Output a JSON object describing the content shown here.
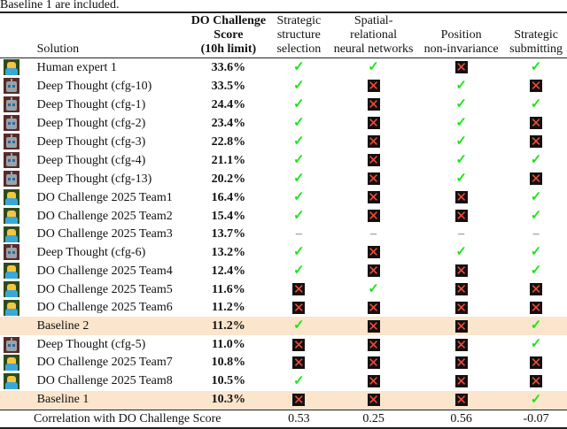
{
  "caption_fragment": "Baseline 1 are included.",
  "header": {
    "solution": "Solution",
    "score": [
      "DO Challenge",
      "Score",
      "(10h limit)"
    ],
    "col1": [
      "Strategic",
      "structure",
      "selection"
    ],
    "col2": [
      "Spatial-",
      "relational",
      "neural networks"
    ],
    "col3": [
      "Position",
      "non-invariance"
    ],
    "col4": [
      "Strategic",
      "submitting"
    ]
  },
  "marks": {
    "yes": "✓",
    "no": "✕",
    "na": "–"
  },
  "colors": {
    "check": "#19e619",
    "cross": "#ff4b3a",
    "highlight": "#fbe5cc"
  },
  "rows": [
    {
      "icon": "person-icon",
      "name": "Human expert 1",
      "score": "33.6%",
      "f": [
        "yes",
        "yes",
        "no",
        "yes"
      ]
    },
    {
      "icon": "robot-icon",
      "name": "Deep Thought (cfg-10)",
      "score": "33.5%",
      "f": [
        "yes",
        "no",
        "yes",
        "no"
      ]
    },
    {
      "icon": "robot-icon",
      "name": "Deep Thought (cfg-1)",
      "score": "24.4%",
      "f": [
        "yes",
        "no",
        "yes",
        "yes"
      ]
    },
    {
      "icon": "robot-icon",
      "name": "Deep Thought (cfg-2)",
      "score": "23.4%",
      "f": [
        "yes",
        "no",
        "yes",
        "no"
      ]
    },
    {
      "icon": "robot-icon",
      "name": "Deep Thought (cfg-3)",
      "score": "22.8%",
      "f": [
        "yes",
        "no",
        "yes",
        "no"
      ]
    },
    {
      "icon": "robot-icon",
      "name": "Deep Thought (cfg-4)",
      "score": "21.1%",
      "f": [
        "yes",
        "no",
        "yes",
        "yes"
      ]
    },
    {
      "icon": "robot-icon",
      "name": "Deep Thought (cfg-13)",
      "score": "20.2%",
      "f": [
        "yes",
        "no",
        "yes",
        "no"
      ]
    },
    {
      "icon": "person-icon",
      "name": "DO Challenge 2025 Team1",
      "score": "16.4%",
      "f": [
        "yes",
        "no",
        "no",
        "yes"
      ]
    },
    {
      "icon": "person-icon",
      "name": "DO Challenge 2025 Team2",
      "score": "15.4%",
      "f": [
        "yes",
        "no",
        "no",
        "yes"
      ]
    },
    {
      "icon": "person-icon",
      "name": "DO Challenge 2025 Team3",
      "score": "13.7%",
      "f": [
        "na",
        "na",
        "na",
        "na"
      ]
    },
    {
      "icon": "robot-icon",
      "name": "Deep Thought (cfg-6)",
      "score": "13.2%",
      "f": [
        "yes",
        "no",
        "yes",
        "yes"
      ]
    },
    {
      "icon": "person-icon",
      "name": "DO Challenge 2025 Team4",
      "score": "12.4%",
      "f": [
        "yes",
        "no",
        "no",
        "yes"
      ]
    },
    {
      "icon": "person-icon",
      "name": "DO Challenge 2025 Team5",
      "score": "11.6%",
      "f": [
        "no",
        "yes",
        "no",
        "no"
      ]
    },
    {
      "icon": "person-icon",
      "name": "DO Challenge 2025 Team6",
      "score": "11.2%",
      "f": [
        "no",
        "no",
        "no",
        "no"
      ]
    },
    {
      "icon": "",
      "name": "Baseline 2",
      "score": "11.2%",
      "f": [
        "yes",
        "no",
        "no",
        "yes"
      ],
      "highlight": true
    },
    {
      "icon": "robot-icon",
      "name": "Deep Thought (cfg-5)",
      "score": "11.0%",
      "f": [
        "no",
        "no",
        "no",
        "yes"
      ]
    },
    {
      "icon": "person-icon",
      "name": "DO Challenge 2025 Team7",
      "score": "10.8%",
      "f": [
        "no",
        "no",
        "no",
        "no"
      ]
    },
    {
      "icon": "person-icon",
      "name": "DO Challenge 2025 Team8",
      "score": "10.5%",
      "f": [
        "yes",
        "no",
        "no",
        "no"
      ]
    },
    {
      "icon": "",
      "name": "Baseline 1",
      "score": "10.3%",
      "f": [
        "no",
        "no",
        "no",
        "yes"
      ],
      "highlight": true
    }
  ],
  "footer": {
    "label": "Correlation with DO Challenge Score",
    "values": [
      "0.53",
      "0.25",
      "0.56",
      "-0.07"
    ]
  }
}
